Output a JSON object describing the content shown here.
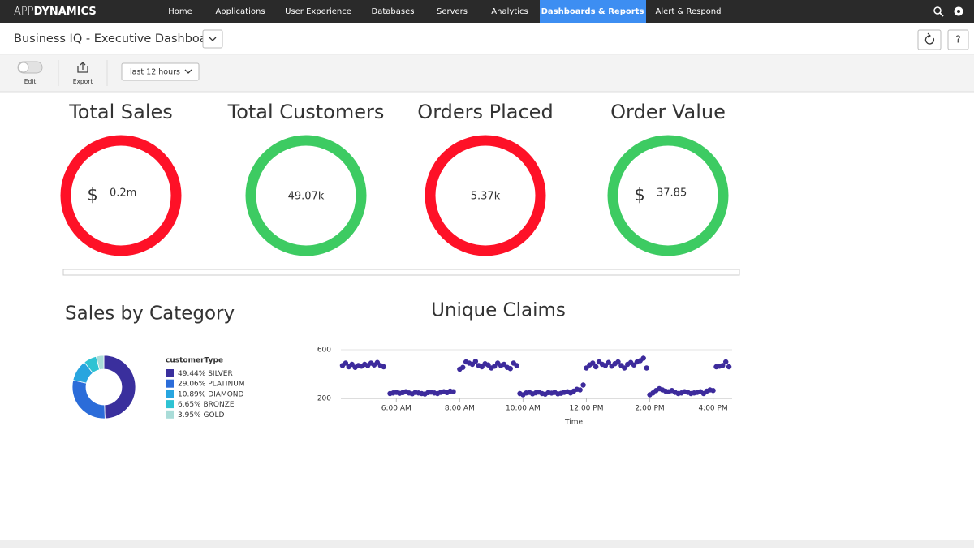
{
  "nav": {
    "brand_light": "APP",
    "brand_bold": "DYNAMICS",
    "items": [
      "Home",
      "Applications",
      "User Experience",
      "Databases",
      "Servers",
      "Analytics",
      "Dashboards & Reports",
      "Alert & Respond"
    ],
    "active_item": 6
  },
  "header": {
    "title": "Business IQ - Executive Dashboard",
    "help": "?"
  },
  "toolbar": {
    "edit": "Edit",
    "export": "Export",
    "time_range": "last 12 hours"
  },
  "kpis": [
    {
      "title": "Total Sales",
      "prefix": "$",
      "value": "0.2m",
      "color": "#fe1127"
    },
    {
      "title": "Total Customers",
      "value": "49.07k",
      "color": "#3dcb62"
    },
    {
      "title": "Orders Placed",
      "value": "5.37k",
      "color": "#fe1127"
    },
    {
      "title": "Order Value",
      "prefix": "$",
      "value": "37.85",
      "color": "#3dcb62"
    }
  ],
  "chart_data": [
    {
      "type": "donut",
      "title": "Sales by Category",
      "legend_title": "customerType",
      "categories": [
        "SILVER",
        "PLATINUM",
        "DIAMOND",
        "BRONZE",
        "GOLD"
      ],
      "values": [
        49.44,
        29.06,
        10.89,
        6.65,
        3.95
      ],
      "value_labels": [
        "49.44%",
        "29.06%",
        "10.89%",
        "6.65%",
        "3.95%"
      ],
      "colors": [
        "#3a2f9d",
        "#2b6cd9",
        "#28a5df",
        "#2ec3d3",
        "#a9dcd8"
      ]
    },
    {
      "type": "scatter",
      "title": "Unique Claims",
      "xlabel": "Time",
      "color": "#3d2b9c",
      "grid": true,
      "x": [
        4.3,
        4.4,
        4.5,
        4.6,
        4.7,
        4.8,
        4.9,
        5.0,
        5.1,
        5.2,
        5.3,
        5.4,
        5.5,
        5.6,
        5.8,
        5.9,
        6.0,
        6.1,
        6.2,
        6.3,
        6.4,
        6.5,
        6.6,
        6.7,
        6.8,
        6.9,
        7.0,
        7.1,
        7.2,
        7.3,
        7.4,
        7.5,
        7.6,
        7.7,
        7.8,
        8.0,
        8.1,
        8.2,
        8.3,
        8.4,
        8.5,
        8.6,
        8.7,
        8.8,
        8.9,
        9.0,
        9.1,
        9.2,
        9.3,
        9.4,
        9.5,
        9.6,
        9.7,
        9.8,
        9.9,
        10.0,
        10.1,
        10.2,
        10.3,
        10.4,
        10.5,
        10.6,
        10.7,
        10.8,
        10.9,
        11.0,
        11.1,
        11.2,
        11.3,
        11.4,
        11.5,
        11.6,
        11.7,
        11.8,
        11.9,
        12.0,
        12.1,
        12.2,
        12.3,
        12.4,
        12.5,
        12.6,
        12.7,
        12.8,
        12.9,
        13.0,
        13.1,
        13.2,
        13.3,
        13.4,
        13.5,
        13.6,
        13.7,
        13.8,
        13.9,
        14.0,
        14.1,
        14.2,
        14.3,
        14.4,
        14.5,
        14.6,
        14.7,
        14.8,
        14.9,
        15.0,
        15.1,
        15.2,
        15.3,
        15.4,
        15.5,
        15.6,
        15.7,
        15.8,
        15.9,
        16.0,
        16.1,
        16.2,
        16.3,
        16.4,
        16.5
      ],
      "values": [
        470,
        490,
        460,
        480,
        455,
        470,
        465,
        480,
        470,
        490,
        475,
        495,
        470,
        460,
        240,
        245,
        250,
        242,
        248,
        255,
        245,
        238,
        250,
        245,
        240,
        236,
        248,
        252,
        245,
        240,
        250,
        255,
        248,
        260,
        255,
        440,
        455,
        500,
        490,
        480,
        505,
        470,
        460,
        485,
        475,
        450,
        465,
        490,
        470,
        480,
        455,
        445,
        490,
        470,
        240,
        230,
        245,
        250,
        238,
        246,
        252,
        240,
        235,
        248,
        244,
        250,
        238,
        242,
        250,
        255,
        245,
        260,
        275,
        270,
        310,
        450,
        475,
        490,
        460,
        500,
        480,
        470,
        495,
        465,
        485,
        500,
        470,
        450,
        480,
        495,
        475,
        500,
        510,
        530,
        450,
        230,
        245,
        265,
        280,
        270,
        260,
        255,
        265,
        250,
        240,
        245,
        255,
        250,
        240,
        245,
        250,
        255,
        240,
        260,
        270,
        265,
        460,
        465,
        470,
        500,
        460
      ],
      "xlim": [
        4.25,
        16.6
      ],
      "xticks": [
        {
          "value": 6,
          "label": "6:00 AM"
        },
        {
          "value": 8,
          "label": "8:00 AM"
        },
        {
          "value": 10,
          "label": "10:00 AM"
        },
        {
          "value": 12,
          "label": "12:00 PM"
        },
        {
          "value": 14,
          "label": "2:00 PM"
        },
        {
          "value": 16,
          "label": "4:00 PM"
        }
      ],
      "ylim": [
        200,
        600
      ],
      "yticks": [
        200,
        600
      ]
    }
  ]
}
